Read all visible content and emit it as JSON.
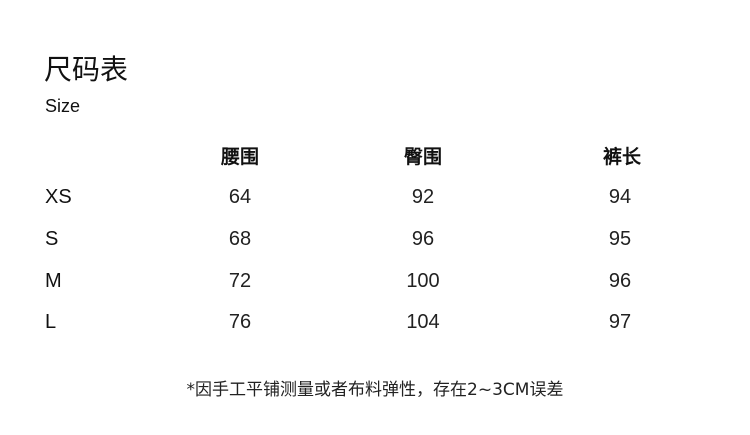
{
  "title": "尺码表",
  "subtitle": "Size",
  "columns": [
    "腰围",
    "臀围",
    "裤长"
  ],
  "rows": [
    {
      "size": "XS",
      "values": [
        "64",
        "92",
        "94"
      ]
    },
    {
      "size": "S",
      "values": [
        "68",
        "96",
        "95"
      ]
    },
    {
      "size": "M",
      "values": [
        "72",
        "100",
        "96"
      ]
    },
    {
      "size": "L",
      "values": [
        "76",
        "104",
        "97"
      ]
    }
  ],
  "note": "*因手工平铺测量或者布料弹性，存在2~3CM误差"
}
